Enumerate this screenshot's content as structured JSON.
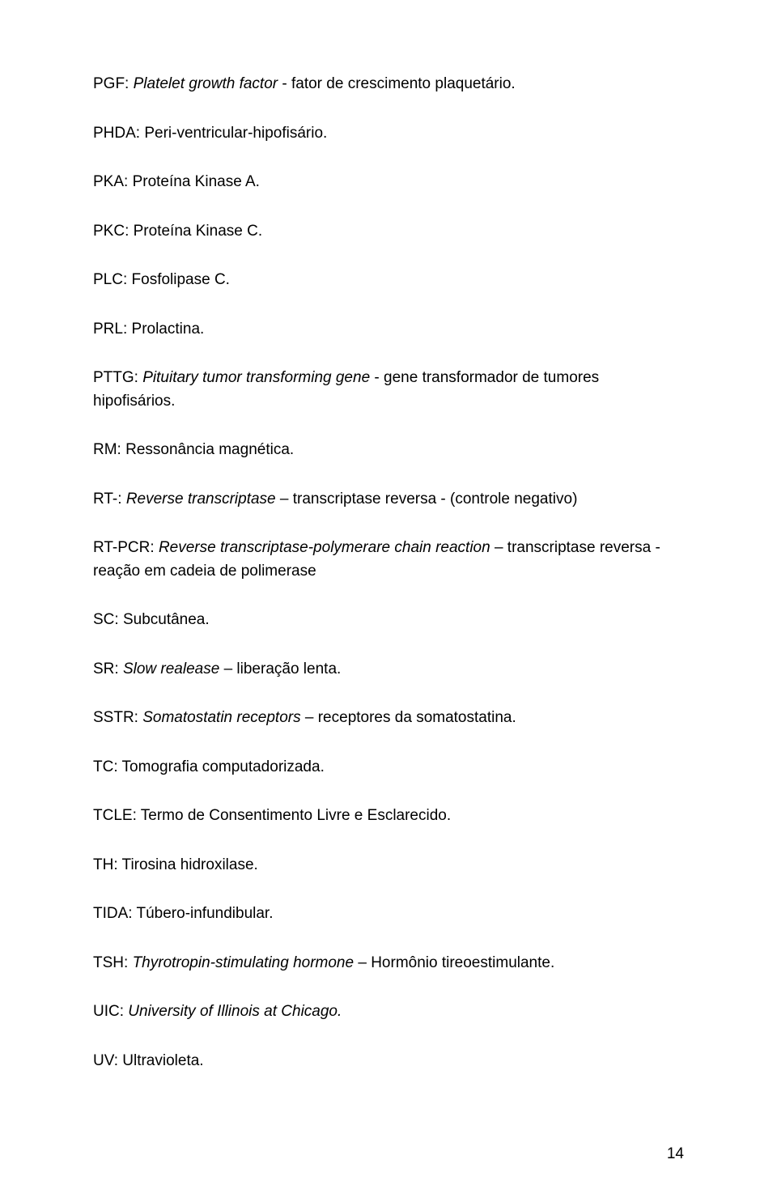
{
  "entries": [
    {
      "id": "pgf",
      "parts": [
        {
          "text": "PGF: ",
          "italic": false
        },
        {
          "text": "Platelet growth factor",
          "italic": true
        },
        {
          "text": " - fator de crescimento plaquetário.",
          "italic": false
        }
      ]
    },
    {
      "id": "phda",
      "parts": [
        {
          "text": "PHDA: Peri-ventricular-hipofisário.",
          "italic": false
        }
      ]
    },
    {
      "id": "pka",
      "parts": [
        {
          "text": "PKA: Proteína Kinase A.",
          "italic": false
        }
      ]
    },
    {
      "id": "pkc",
      "parts": [
        {
          "text": "PKC: Proteína Kinase C.",
          "italic": false
        }
      ]
    },
    {
      "id": "plc",
      "parts": [
        {
          "text": "PLC: Fosfolipase C.",
          "italic": false
        }
      ]
    },
    {
      "id": "prl",
      "parts": [
        {
          "text": "PRL: Prolactina.",
          "italic": false
        }
      ]
    },
    {
      "id": "pttg",
      "parts": [
        {
          "text": "PTTG: ",
          "italic": false
        },
        {
          "text": "Pituitary tumor transforming gene",
          "italic": true
        },
        {
          "text": " - gene transformador de tumores hipofisários.",
          "italic": false
        }
      ]
    },
    {
      "id": "rm",
      "parts": [
        {
          "text": "RM: Ressonância magnética.",
          "italic": false
        }
      ]
    },
    {
      "id": "rt",
      "parts": [
        {
          "text": "RT-: ",
          "italic": false
        },
        {
          "text": "Reverse transcriptase",
          "italic": true
        },
        {
          "text": " – transcriptase reversa - (controle negativo)",
          "italic": false
        }
      ]
    },
    {
      "id": "rtpcr",
      "parts": [
        {
          "text": "RT-PCR: ",
          "italic": false
        },
        {
          "text": "Reverse transcriptase-polymerare chain reaction",
          "italic": true
        },
        {
          "text": " – transcriptase reversa - reação em cadeia de polimerase",
          "italic": false
        }
      ]
    },
    {
      "id": "sc",
      "parts": [
        {
          "text": " SC: Subcutânea.",
          "italic": false
        }
      ]
    },
    {
      "id": "sr",
      "parts": [
        {
          "text": "SR: ",
          "italic": false
        },
        {
          "text": "Slow realease",
          "italic": true
        },
        {
          "text": " – liberação lenta.",
          "italic": false
        }
      ]
    },
    {
      "id": "sstr",
      "parts": [
        {
          "text": "SSTR: ",
          "italic": false
        },
        {
          "text": "Somatostatin  receptors",
          "italic": true
        },
        {
          "text": " – receptores da somatostatina.",
          "italic": false
        }
      ]
    },
    {
      "id": "tc",
      "parts": [
        {
          "text": "TC: Tomografia computadorizada.",
          "italic": false
        }
      ]
    },
    {
      "id": "tcle",
      "parts": [
        {
          "text": "TCLE: Termo de Consentimento Livre e Esclarecido.",
          "italic": false
        }
      ]
    },
    {
      "id": "th",
      "parts": [
        {
          "text": "TH: Tirosina hidroxilase.",
          "italic": false
        }
      ]
    },
    {
      "id": "tida",
      "parts": [
        {
          "text": "TIDA: Túbero-infundibular.",
          "italic": false
        }
      ]
    },
    {
      "id": "tsh",
      "parts": [
        {
          "text": "TSH: ",
          "italic": false
        },
        {
          "text": "Thyrotropin-stimulating hormone",
          "italic": true
        },
        {
          "text": " – Hormônio tireoestimulante.",
          "italic": false
        }
      ]
    },
    {
      "id": "uic",
      "parts": [
        {
          "text": "UIC: ",
          "italic": false
        },
        {
          "text": "University of Illinois at Chicago.",
          "italic": true
        }
      ]
    },
    {
      "id": "uv",
      "parts": [
        {
          "text": "UV: Ultravioleta.",
          "italic": false
        }
      ]
    }
  ],
  "page_number": "14",
  "colors": {
    "background": "#ffffff",
    "text": "#000000"
  },
  "typography": {
    "font_family": "Arial",
    "font_size_pt": 14,
    "line_height": 1.5
  }
}
